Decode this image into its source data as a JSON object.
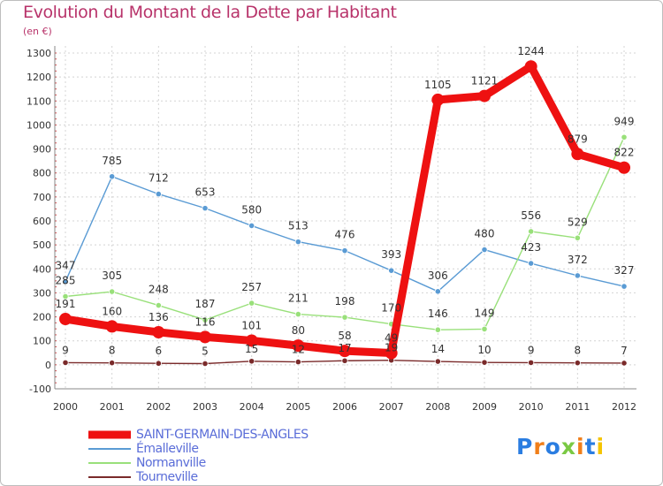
{
  "title": "Evolution du Montant de la Dette par Habitant",
  "subtitle": "(en €)",
  "logo_text": "Proxiti",
  "chart_data": {
    "type": "line",
    "x": [
      2000,
      2001,
      2002,
      2003,
      2004,
      2005,
      2006,
      2007,
      2008,
      2009,
      2010,
      2011,
      2012
    ],
    "ylim": [
      -100,
      1300
    ],
    "yticks": [
      -100,
      0,
      100,
      200,
      300,
      400,
      500,
      600,
      700,
      800,
      900,
      1000,
      1100,
      1200,
      1300
    ],
    "grid": true,
    "legend_position": "bottom-left",
    "series": [
      {
        "name": "SAINT-GERMAIN-DES-ANGLES",
        "color": "#ee1111",
        "width": 9,
        "values": [
          191,
          160,
          136,
          116,
          101,
          80,
          58,
          49,
          1105,
          1121,
          1244,
          879,
          822
        ]
      },
      {
        "name": "Émalleville",
        "color": "#5a9bd4",
        "width": 1.4,
        "values": [
          347,
          785,
          712,
          653,
          580,
          513,
          476,
          393,
          306,
          480,
          423,
          372,
          327
        ]
      },
      {
        "name": "Normanville",
        "color": "#99e07a",
        "width": 1.4,
        "values": [
          285,
          305,
          248,
          187,
          257,
          211,
          198,
          170,
          146,
          149,
          556,
          529,
          949
        ]
      },
      {
        "name": "Tourneville",
        "color": "#7a2a2a",
        "width": 1.4,
        "values": [
          9,
          8,
          6,
          5,
          15,
          12,
          17,
          19,
          14,
          10,
          9,
          8,
          7
        ]
      }
    ]
  }
}
